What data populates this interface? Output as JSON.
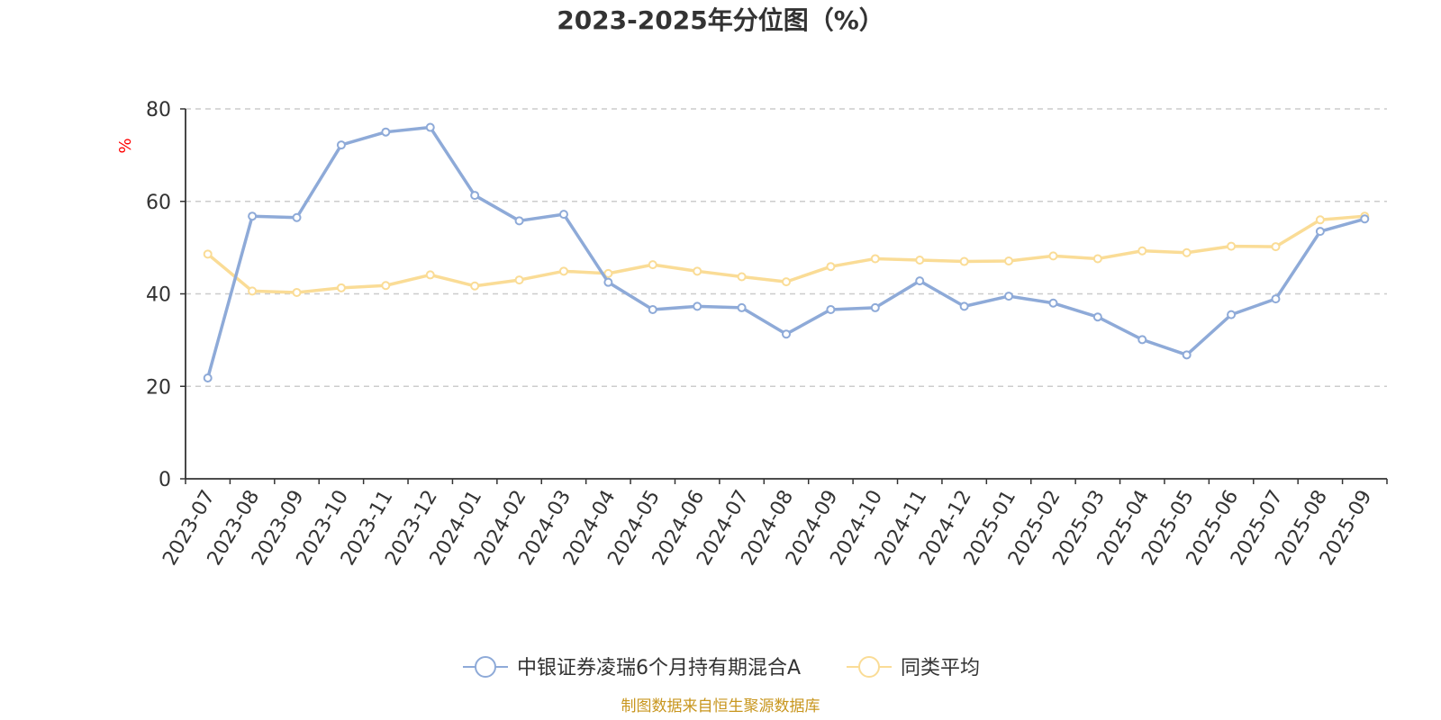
{
  "chart_data": {
    "type": "line",
    "title": "2023-2025年分位图（%）",
    "ylabel": "%",
    "ylim": [
      0,
      80
    ],
    "yticks": [
      0,
      20,
      40,
      60,
      80
    ],
    "grid": true,
    "legend_position": "bottom",
    "categories": [
      "2023-07",
      "2023-08",
      "2023-09",
      "2023-10",
      "2023-11",
      "2023-12",
      "2024-01",
      "2024-02",
      "2024-03",
      "2024-04",
      "2024-05",
      "2024-06",
      "2024-07",
      "2024-08",
      "2024-09",
      "2024-10",
      "2024-11",
      "2024-12",
      "2025-01",
      "2025-02",
      "2025-03",
      "2025-04",
      "2025-05",
      "2025-06",
      "2025-07",
      "2025-08",
      "2025-09"
    ],
    "series": [
      {
        "name": "中银证券凌瑞6个月持有期混合A",
        "color": "#8eaad8",
        "values": [
          21.8,
          56.8,
          56.5,
          72.2,
          75.0,
          76.0,
          61.3,
          55.8,
          57.2,
          42.5,
          36.6,
          37.3,
          37.0,
          31.3,
          36.6,
          37.0,
          42.8,
          37.3,
          39.5,
          38.0,
          35.0,
          30.1,
          26.8,
          35.5,
          38.9,
          53.5,
          56.2
        ]
      },
      {
        "name": "同类平均",
        "color": "#fadc96",
        "values": [
          48.6,
          40.6,
          40.3,
          41.3,
          41.8,
          44.1,
          41.7,
          43.0,
          44.9,
          44.4,
          46.3,
          44.9,
          43.7,
          42.6,
          45.9,
          47.6,
          47.3,
          47.0,
          47.1,
          48.2,
          47.6,
          49.3,
          48.9,
          50.3,
          50.2,
          56.0,
          56.8
        ]
      }
    ],
    "source": "制图数据来自恒生聚源数据库",
    "source_color": "#c8961e",
    "ylabel_color": "#ff0000",
    "axis_color": "#333333",
    "grid_color": "#cccccc"
  }
}
